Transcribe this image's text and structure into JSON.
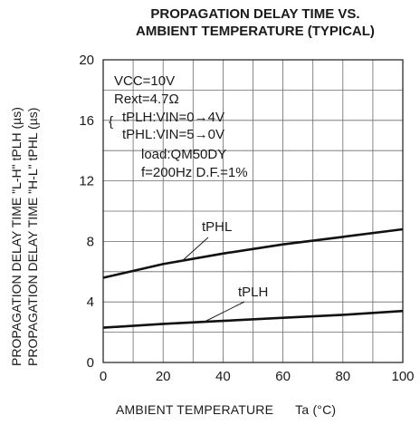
{
  "chart_data": {
    "type": "line",
    "title": "PROPAGATION DELAY TIME VS.",
    "subtitle": "AMBIENT TEMPERATURE (TYPICAL)",
    "xlabel": "AMBIENT TEMPERATURE",
    "xlabel_symbol": "Ta (°C)",
    "ylabel_1": "PROPAGATION DELAY TIME \"L-H\"   tPLH (µs)",
    "ylabel_2": "PROPAGATION DELAY TIME \"H-L\"   tPHL (µs)",
    "xlim": [
      0,
      100
    ],
    "ylim": [
      0,
      20
    ],
    "x_ticks": [
      "0",
      "20",
      "40",
      "60",
      "80",
      "100"
    ],
    "y_ticks": [
      "0",
      "4",
      "8",
      "12",
      "16",
      "20"
    ],
    "grid": true,
    "conditions": [
      "VCC=10V",
      "Rext=4.7Ω",
      "tPLH:VIN=0→4V",
      "tPHL:VIN=5→0V",
      "load:QM50DY",
      "f=200Hz D.F.=1%"
    ],
    "series": [
      {
        "name": "tPHL",
        "x": [
          0,
          20,
          40,
          60,
          80,
          100
        ],
        "y": [
          5.6,
          6.5,
          7.2,
          7.8,
          8.3,
          8.8
        ]
      },
      {
        "name": "tPLH",
        "x": [
          0,
          20,
          40,
          60,
          80,
          100
        ],
        "y": [
          2.3,
          2.55,
          2.75,
          2.95,
          3.15,
          3.4
        ]
      }
    ]
  }
}
